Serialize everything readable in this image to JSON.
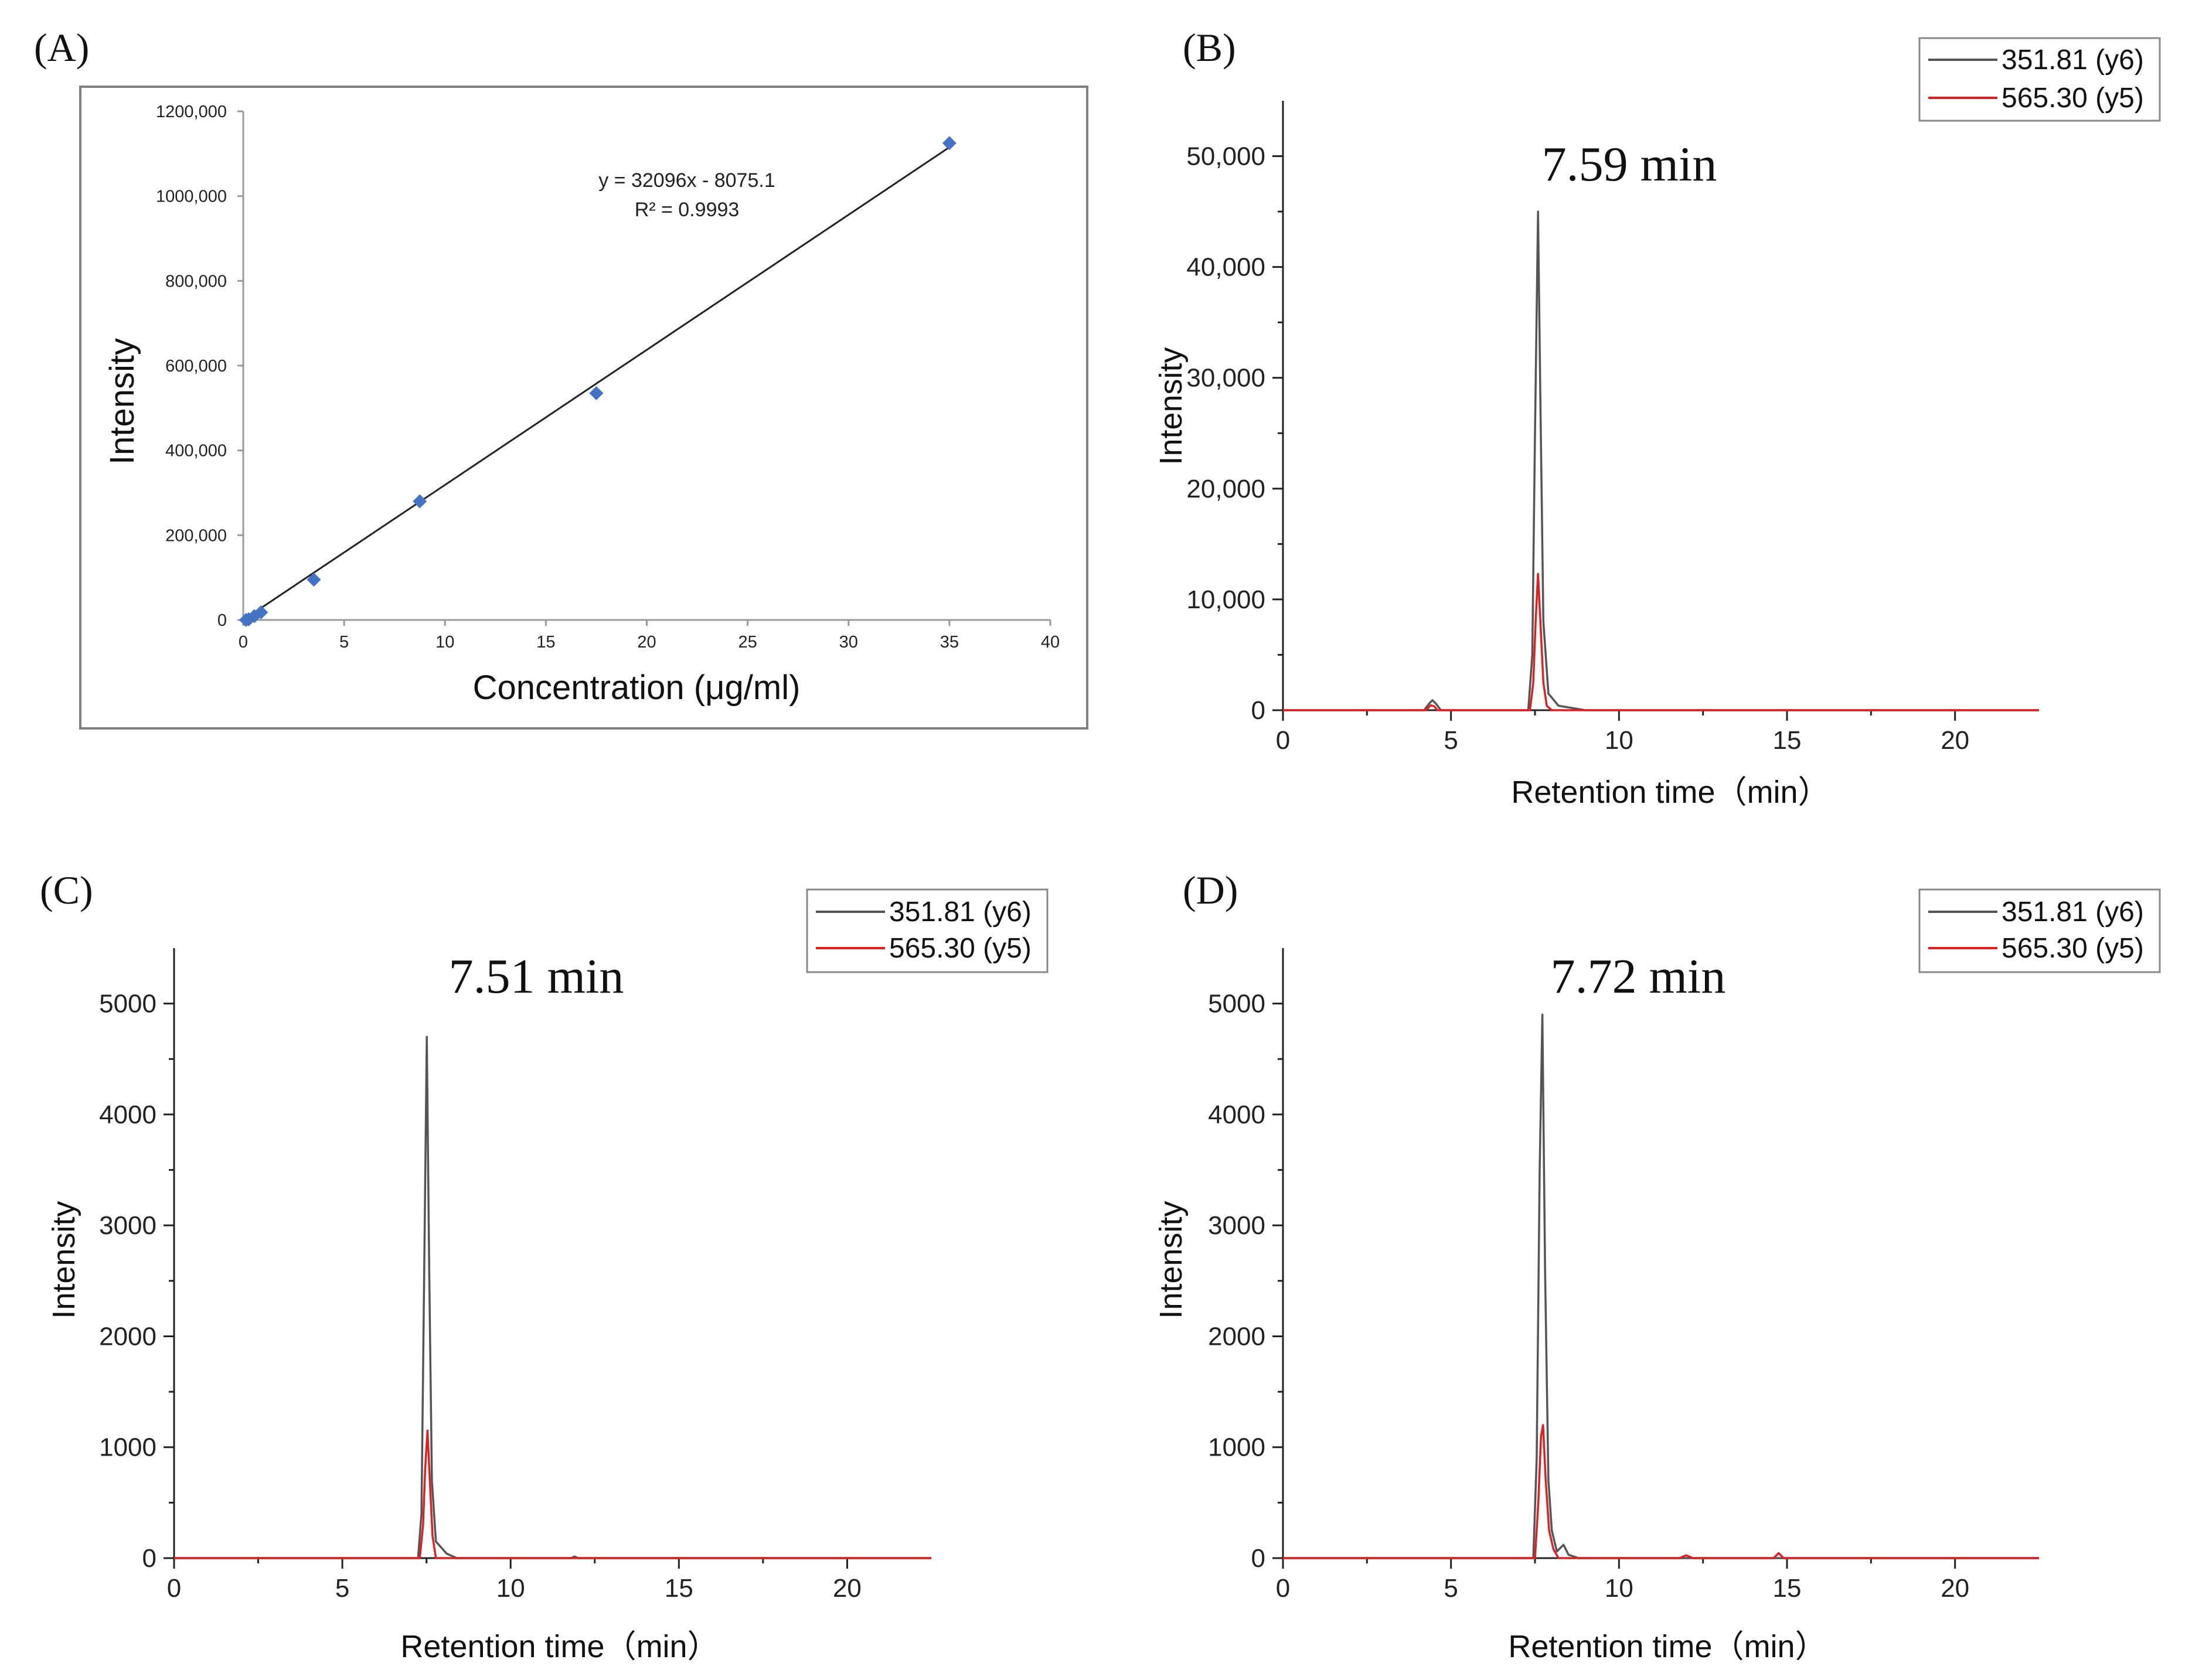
{
  "figure_labels": {
    "a": "(A)",
    "b": "(B)",
    "c": "(C)",
    "d": "(D)"
  },
  "colors": {
    "calibration_marker": "#4472c4",
    "line_black": "#555555",
    "line_red": "#e02020",
    "frame": "#808080"
  },
  "chart_data": [
    {
      "id": "A",
      "type": "scatter",
      "title": "",
      "xlabel": "Concentration (μg/ml)",
      "ylabel": "Intensity",
      "xlim": [
        0,
        40
      ],
      "ylim": [
        0,
        1200000
      ],
      "x_ticks": [
        0,
        5,
        10,
        15,
        20,
        25,
        30,
        35,
        40
      ],
      "x_tick_labels": [
        "0",
        "5",
        "10",
        "15",
        "20",
        "25",
        "30",
        "35",
        "40"
      ],
      "y_ticks": [
        0,
        200000,
        400000,
        600000,
        800000,
        1000000,
        1200000
      ],
      "y_tick_labels": [
        "0",
        "200,000",
        "400,000",
        "600,000",
        "800,000",
        "1000,000",
        "1200,000"
      ],
      "points": [
        {
          "x": 0.14,
          "y": 0
        },
        {
          "x": 0.27,
          "y": 1500
        },
        {
          "x": 0.55,
          "y": 9000
        },
        {
          "x": 0.88,
          "y": 18000
        },
        {
          "x": 3.5,
          "y": 95000
        },
        {
          "x": 8.75,
          "y": 280000
        },
        {
          "x": 17.5,
          "y": 535000
        },
        {
          "x": 35,
          "y": 1125000
        }
      ],
      "trendline": {
        "slope": 32096,
        "intercept": -8075.1,
        "x_range": [
          0,
          35
        ]
      },
      "equation": "y = 32096x - 8075.1",
      "r_squared": "R² = 0.9993"
    },
    {
      "id": "B",
      "type": "line",
      "xlabel": "Retention time（min）",
      "ylabel": "Intensity",
      "xlim": [
        0,
        22.5
      ],
      "ylim": [
        0,
        55000
      ],
      "x_ticks": [
        0,
        5,
        10,
        15,
        20
      ],
      "x_tick_labels": [
        "0",
        "5",
        "10",
        "15",
        "20"
      ],
      "y_ticks": [
        0,
        10000,
        20000,
        30000,
        40000,
        50000
      ],
      "y_tick_labels": [
        "0",
        "10,000",
        "20,000",
        "30,000",
        "40,000",
        "50,000"
      ],
      "annotation": "7.59 min",
      "legend": [
        "351.81 (y6)",
        "565.30 (y5)"
      ],
      "series": [
        {
          "name": "351.81 (y6)",
          "color": "#555555",
          "points": [
            [
              0,
              0
            ],
            [
              4.2,
              0
            ],
            [
              4.35,
              600
            ],
            [
              4.45,
              900
            ],
            [
              4.55,
              600
            ],
            [
              4.7,
              0
            ],
            [
              7.3,
              0
            ],
            [
              7.42,
              5000
            ],
            [
              7.5,
              25000
            ],
            [
              7.59,
              45000
            ],
            [
              7.66,
              28000
            ],
            [
              7.75,
              8000
            ],
            [
              7.9,
              1500
            ],
            [
              8.2,
              400
            ],
            [
              9.0,
              0
            ],
            [
              22.5,
              0
            ]
          ]
        },
        {
          "name": "565.30 (y5)",
          "color": "#e02020",
          "points": [
            [
              0,
              0
            ],
            [
              4.25,
              0
            ],
            [
              4.4,
              450
            ],
            [
              4.5,
              350
            ],
            [
              4.6,
              0
            ],
            [
              7.35,
              0
            ],
            [
              7.45,
              2500
            ],
            [
              7.52,
              8000
            ],
            [
              7.59,
              12300
            ],
            [
              7.66,
              8000
            ],
            [
              7.75,
              2500
            ],
            [
              7.85,
              400
            ],
            [
              8.0,
              0
            ],
            [
              22.5,
              0
            ]
          ]
        }
      ]
    },
    {
      "id": "C",
      "type": "line",
      "xlabel": "Retention time（min）",
      "ylabel": "Intensity",
      "xlim": [
        0,
        22.5
      ],
      "ylim": [
        0,
        5500
      ],
      "x_ticks": [
        0,
        5,
        10,
        15,
        20
      ],
      "x_tick_labels": [
        "0",
        "5",
        "10",
        "15",
        "20"
      ],
      "y_ticks": [
        0,
        1000,
        2000,
        3000,
        4000,
        5000
      ],
      "y_tick_labels": [
        "0",
        "1000",
        "2000",
        "3000",
        "4000",
        "5000"
      ],
      "annotation": "7.51 min",
      "legend": [
        "351.81 (y6)",
        "565.30 (y5)"
      ],
      "series": [
        {
          "name": "351.81 (y6)",
          "color": "#555555",
          "points": [
            [
              0,
              0
            ],
            [
              7.25,
              0
            ],
            [
              7.35,
              400
            ],
            [
              7.43,
              2500
            ],
            [
              7.51,
              4700
            ],
            [
              7.58,
              2600
            ],
            [
              7.66,
              700
            ],
            [
              7.78,
              150
            ],
            [
              8.1,
              40
            ],
            [
              8.4,
              0
            ],
            [
              11.8,
              0
            ],
            [
              11.9,
              15
            ],
            [
              12.0,
              0
            ],
            [
              22.5,
              0
            ]
          ]
        },
        {
          "name": "565.30 (y5)",
          "color": "#e02020",
          "points": [
            [
              0,
              0
            ],
            [
              7.3,
              0
            ],
            [
              7.4,
              300
            ],
            [
              7.46,
              800
            ],
            [
              7.53,
              1150
            ],
            [
              7.6,
              700
            ],
            [
              7.68,
              200
            ],
            [
              7.78,
              0
            ],
            [
              22.5,
              0
            ]
          ]
        }
      ]
    },
    {
      "id": "D",
      "type": "line",
      "xlabel": "Retention time（min）",
      "ylabel": "Intensity",
      "xlim": [
        0,
        22.5
      ],
      "ylim": [
        0,
        5500
      ],
      "x_ticks": [
        0,
        5,
        10,
        15,
        20
      ],
      "x_tick_labels": [
        "0",
        "5",
        "10",
        "15",
        "20"
      ],
      "y_ticks": [
        0,
        1000,
        2000,
        3000,
        4000,
        5000
      ],
      "y_tick_labels": [
        "0",
        "1000",
        "2000",
        "3000",
        "4000",
        "5000"
      ],
      "annotation": "7.72 min",
      "legend": [
        "351.81 (y6)",
        "565.30 (y5)"
      ],
      "series": [
        {
          "name": "351.81 (y6)",
          "color": "#555555",
          "points": [
            [
              0,
              0
            ],
            [
              7.45,
              0
            ],
            [
              7.55,
              900
            ],
            [
              7.64,
              3500
            ],
            [
              7.72,
              4900
            ],
            [
              7.8,
              2600
            ],
            [
              7.9,
              700
            ],
            [
              8.0,
              250
            ],
            [
              8.15,
              60
            ],
            [
              8.35,
              120
            ],
            [
              8.5,
              30
            ],
            [
              8.8,
              0
            ],
            [
              22.5,
              0
            ]
          ]
        },
        {
          "name": "565.30 (y5)",
          "color": "#e02020",
          "points": [
            [
              0,
              0
            ],
            [
              7.5,
              0
            ],
            [
              7.6,
              500
            ],
            [
              7.68,
              1100
            ],
            [
              7.74,
              1200
            ],
            [
              7.82,
              700
            ],
            [
              7.92,
              250
            ],
            [
              8.05,
              80
            ],
            [
              8.2,
              0
            ],
            [
              11.8,
              0
            ],
            [
              12.0,
              25
            ],
            [
              12.2,
              0
            ],
            [
              14.6,
              0
            ],
            [
              14.75,
              45
            ],
            [
              14.9,
              0
            ],
            [
              22.5,
              0
            ]
          ]
        }
      ]
    }
  ]
}
